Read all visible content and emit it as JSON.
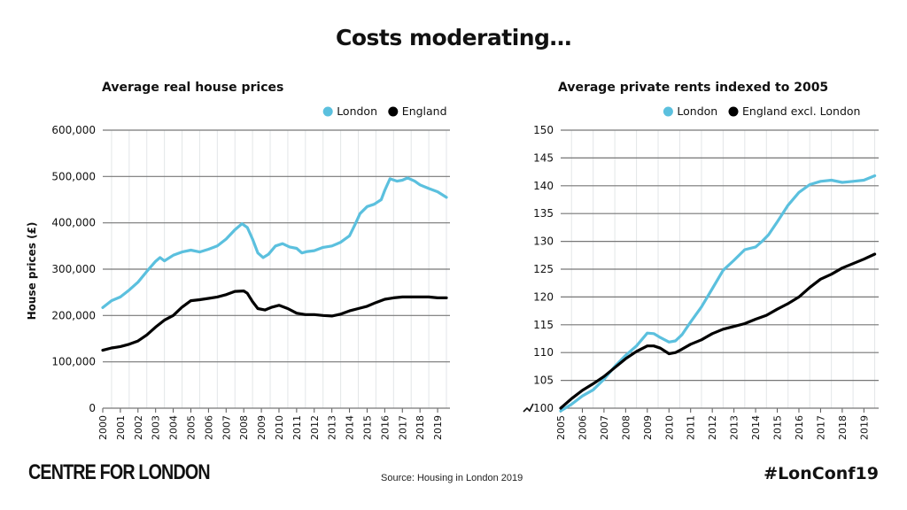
{
  "page": {
    "title": "Costs moderating…",
    "footer_logo": "CENTRE FOR LONDON",
    "footer_source": "Source: Housing in London 2019",
    "footer_tag": "#LonConf19"
  },
  "colors": {
    "london": "#5bc0de",
    "england": "#000000",
    "grid": "#777777",
    "vgrid": "#e3e6e8"
  },
  "chart_data": [
    {
      "type": "line",
      "title": "Average real house prices",
      "xlabel": "",
      "ylabel": "House prices (£)",
      "x_ticks": [
        "2000",
        "2001",
        "2002",
        "2003",
        "2004",
        "2005",
        "2006",
        "2007",
        "2008",
        "2009",
        "2010",
        "2011",
        "2012",
        "2013",
        "2014",
        "2015",
        "2016",
        "2017",
        "2018",
        "2019"
      ],
      "xlim": [
        2000,
        2019.6
      ],
      "ylim": [
        0,
        600000
      ],
      "y_ticks": [
        0,
        100000,
        200000,
        300000,
        400000,
        500000,
        600000
      ],
      "y_tick_labels": [
        "0",
        "100,000",
        "200,000",
        "300,000",
        "400,000",
        "500,000",
        "600,000"
      ],
      "grid": true,
      "legend": "top-right",
      "series": [
        {
          "name": "London",
          "color_key": "london",
          "x": [
            2000,
            2000.5,
            2001,
            2001.5,
            2002,
            2002.5,
            2003,
            2003.25,
            2003.5,
            2004,
            2004.5,
            2005,
            2005.5,
            2006,
            2006.5,
            2007,
            2007.5,
            2007.9,
            2008.2,
            2008.5,
            2008.8,
            2009.1,
            2009.4,
            2009.8,
            2010.2,
            2010.6,
            2011,
            2011.3,
            2011.6,
            2012,
            2012.5,
            2013,
            2013.5,
            2014,
            2014.3,
            2014.6,
            2015,
            2015.4,
            2015.8,
            2016,
            2016.3,
            2016.7,
            2017,
            2017.3,
            2017.7,
            2018,
            2018.5,
            2019,
            2019.5
          ],
          "values": [
            217000,
            232000,
            240000,
            255000,
            272000,
            295000,
            317000,
            325000,
            318000,
            330000,
            337000,
            341000,
            337000,
            343000,
            350000,
            365000,
            385000,
            398000,
            390000,
            365000,
            335000,
            325000,
            332000,
            350000,
            355000,
            348000,
            345000,
            335000,
            338000,
            340000,
            347000,
            350000,
            358000,
            372000,
            395000,
            420000,
            435000,
            440000,
            450000,
            470000,
            495000,
            490000,
            492000,
            497000,
            490000,
            482000,
            474000,
            467000,
            455000
          ]
        },
        {
          "name": "England",
          "color_key": "england",
          "x": [
            2000,
            2000.5,
            2001,
            2001.5,
            2002,
            2002.5,
            2003,
            2003.5,
            2004,
            2004.5,
            2005,
            2005.5,
            2006,
            2006.5,
            2007,
            2007.5,
            2008,
            2008.2,
            2008.5,
            2008.8,
            2009.2,
            2009.6,
            2010,
            2010.5,
            2011,
            2011.5,
            2012,
            2012.5,
            2013,
            2013.5,
            2014,
            2014.5,
            2015,
            2015.5,
            2016,
            2016.5,
            2017,
            2017.5,
            2018,
            2018.5,
            2019,
            2019.5
          ],
          "values": [
            125000,
            130000,
            133000,
            138000,
            145000,
            158000,
            175000,
            190000,
            200000,
            218000,
            232000,
            234000,
            237000,
            240000,
            245000,
            252000,
            253000,
            248000,
            230000,
            215000,
            212000,
            218000,
            222000,
            215000,
            205000,
            202000,
            202000,
            200000,
            199000,
            203000,
            210000,
            215000,
            220000,
            228000,
            235000,
            238000,
            240000,
            240000,
            240000,
            240000,
            238000,
            238000
          ]
        }
      ]
    },
    {
      "type": "line",
      "title": "Average private rents indexed to 2005",
      "xlabel": "",
      "ylabel": "",
      "x_ticks": [
        "2005",
        "2006",
        "2007",
        "2008",
        "2009",
        "2010",
        "2011",
        "2012",
        "2013",
        "2014",
        "2015",
        "2016",
        "2017",
        "2018",
        "2019"
      ],
      "xlim": [
        2005,
        2019.6
      ],
      "ylim": [
        100,
        150
      ],
      "y_ticks": [
        100,
        105,
        110,
        115,
        120,
        125,
        130,
        135,
        140,
        145,
        150
      ],
      "y_tick_labels": [
        "100",
        "105",
        "110",
        "115",
        "120",
        "125",
        "130",
        "135",
        "140",
        "145",
        "150"
      ],
      "axis_break": true,
      "grid": true,
      "legend": "top-right",
      "series": [
        {
          "name": "London",
          "color_key": "london",
          "x": [
            2005,
            2005.5,
            2006,
            2006.5,
            2007,
            2007.5,
            2008,
            2008.5,
            2009,
            2009.3,
            2009.6,
            2010,
            2010.3,
            2010.6,
            2011,
            2011.5,
            2012,
            2012.5,
            2013,
            2013.5,
            2014,
            2014.3,
            2014.6,
            2015,
            2015.5,
            2016,
            2016.5,
            2017,
            2017.5,
            2018,
            2018.5,
            2019,
            2019.5
          ],
          "values": [
            99.5,
            100.7,
            102.2,
            103.3,
            105.2,
            107.5,
            109.5,
            111.2,
            113.5,
            113.4,
            112.7,
            111.9,
            112.1,
            113.2,
            115.5,
            118.2,
            121.5,
            124.8,
            126.6,
            128.5,
            129.0,
            130.0,
            131.2,
            133.5,
            136.5,
            138.8,
            140.2,
            140.8,
            141.0,
            140.6,
            140.8,
            141.0,
            141.8
          ]
        },
        {
          "name": "England excl. London",
          "color_key": "england",
          "x": [
            2005,
            2005.5,
            2006,
            2006.5,
            2007,
            2007.5,
            2008,
            2008.5,
            2009,
            2009.3,
            2009.6,
            2010,
            2010.3,
            2010.6,
            2011,
            2011.5,
            2012,
            2012.5,
            2013,
            2013.5,
            2014,
            2014.5,
            2015,
            2015.5,
            2016,
            2016.5,
            2017,
            2017.5,
            2018,
            2018.5,
            2019,
            2019.5
          ],
          "values": [
            100.0,
            101.7,
            103.2,
            104.4,
            105.7,
            107.3,
            108.9,
            110.2,
            111.2,
            111.2,
            110.8,
            109.8,
            110.0,
            110.6,
            111.5,
            112.3,
            113.4,
            114.2,
            114.7,
            115.2,
            116.0,
            116.7,
            117.8,
            118.8,
            120.0,
            121.7,
            123.2,
            124.1,
            125.2,
            126.0,
            126.8,
            127.7
          ]
        }
      ]
    }
  ]
}
